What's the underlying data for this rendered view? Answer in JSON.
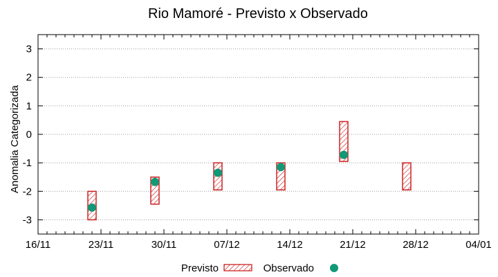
{
  "chart_data": {
    "type": "range-bar-with-points",
    "title": "Rio Mamoré - Previsto x Observado",
    "xlabel": "",
    "ylabel": "Anomalia Categorizada",
    "ylim": [
      -3.5,
      3.5
    ],
    "yticks": [
      -3,
      -2,
      -1,
      0,
      1,
      2,
      3
    ],
    "y_tick_labels": [
      "-3",
      "-2",
      "-1",
      "0",
      "1",
      "2",
      "3"
    ],
    "xlim": [
      "2023-11-16",
      "2024-01-04"
    ],
    "xticks": [
      "2023-11-16",
      "2023-11-23",
      "2023-11-30",
      "2023-12-07",
      "2023-12-14",
      "2023-12-21",
      "2023-12-28",
      "2024-01-04"
    ],
    "x_tick_labels": [
      "16/11",
      "23/11",
      "30/11",
      "07/12",
      "14/12",
      "21/12",
      "28/12",
      "04/01"
    ],
    "grid": "horizontal dotted",
    "legend_position": "bottom",
    "series": [
      {
        "name": "Previsto",
        "kind": "range-bar",
        "color": "#cc2222",
        "points": [
          {
            "x": "2023-11-22",
            "low": -3.0,
            "high": -2.0
          },
          {
            "x": "2023-11-29",
            "low": -2.45,
            "high": -1.5
          },
          {
            "x": "2023-12-06",
            "low": -1.95,
            "high": -1.0
          },
          {
            "x": "2023-12-13",
            "low": -1.95,
            "high": -1.0
          },
          {
            "x": "2023-12-20",
            "low": -0.95,
            "high": 0.45
          },
          {
            "x": "2023-12-27",
            "low": -1.95,
            "high": -1.0
          }
        ]
      },
      {
        "name": "Observado",
        "kind": "point",
        "color": "#119977",
        "points": [
          {
            "x": "2023-11-22",
            "y": -2.57
          },
          {
            "x": "2023-11-29",
            "y": -1.67
          },
          {
            "x": "2023-12-06",
            "y": -1.35
          },
          {
            "x": "2023-12-13",
            "y": -1.15
          },
          {
            "x": "2023-12-20",
            "y": -0.72
          }
        ]
      }
    ]
  }
}
